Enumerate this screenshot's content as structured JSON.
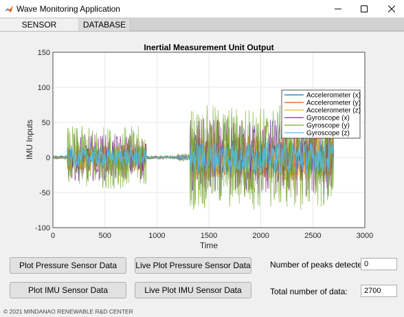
{
  "window": {
    "title": "Wave Monitoring Application",
    "icon": "matlab-icon",
    "controls": {
      "minimize_icon": "minimize-icon",
      "maximize_icon": "maximize-icon",
      "close_icon": "close-icon"
    }
  },
  "tabs": [
    {
      "label": "SENSOR PLOTTING",
      "active": true
    },
    {
      "label": "DATABASE",
      "active": false
    }
  ],
  "plot": {
    "title": "Inertial Measurement Unit Output",
    "xlabel": "Time",
    "ylabel": "IMU Inputs"
  },
  "chart_data": {
    "type": "line",
    "title": "Inertial Measurement Unit Output",
    "xlabel": "Time",
    "ylabel": "IMU Inputs",
    "xlim": [
      0,
      3000
    ],
    "ylim": [
      -100,
      150
    ],
    "x_ticks": [
      0,
      500,
      1000,
      1500,
      2000,
      2500,
      3000
    ],
    "y_ticks": [
      -100,
      -50,
      0,
      50,
      100,
      150
    ],
    "grid": true,
    "legend_position": "top-right",
    "series": [
      {
        "name": "Accelerometer (x)",
        "color": "#0072bd"
      },
      {
        "name": "Accelerometer (y)",
        "color": "#d95319"
      },
      {
        "name": "Accelerometer (z)",
        "color": "#edb120"
      },
      {
        "name": "Gyroscope (x)",
        "color": "#7e2f8e"
      },
      {
        "name": "Gyroscope (y)",
        "color": "#77ac30"
      },
      {
        "name": "Gyroscope (z)",
        "color": "#4dbeee"
      }
    ],
    "segments": [
      {
        "x": [
          0,
          140
        ],
        "amplitude": 3
      },
      {
        "x": [
          140,
          900
        ],
        "amplitude": 45
      },
      {
        "x": [
          900,
          1200
        ],
        "amplitude": 3
      },
      {
        "x": [
          1200,
          1320
        ],
        "amplitude": 6
      },
      {
        "x": [
          1320,
          2700
        ],
        "amplitude": 75
      }
    ]
  },
  "buttons": {
    "plot_pressure": "Plot Pressure Sensor Data",
    "live_plot_pressure": "Live Plot Pressure Sensor Data",
    "plot_imu": "Plot IMU Sensor Data",
    "live_plot_imu": "Live Plot IMU Sensor Data"
  },
  "stats": {
    "peaks_label": "Number of peaks detected:",
    "peaks_value": "0",
    "total_label": "Total number of data:",
    "total_value": "2700"
  },
  "footer": "© 2021 MINDANAO RENEWABLE R&D CENTER"
}
